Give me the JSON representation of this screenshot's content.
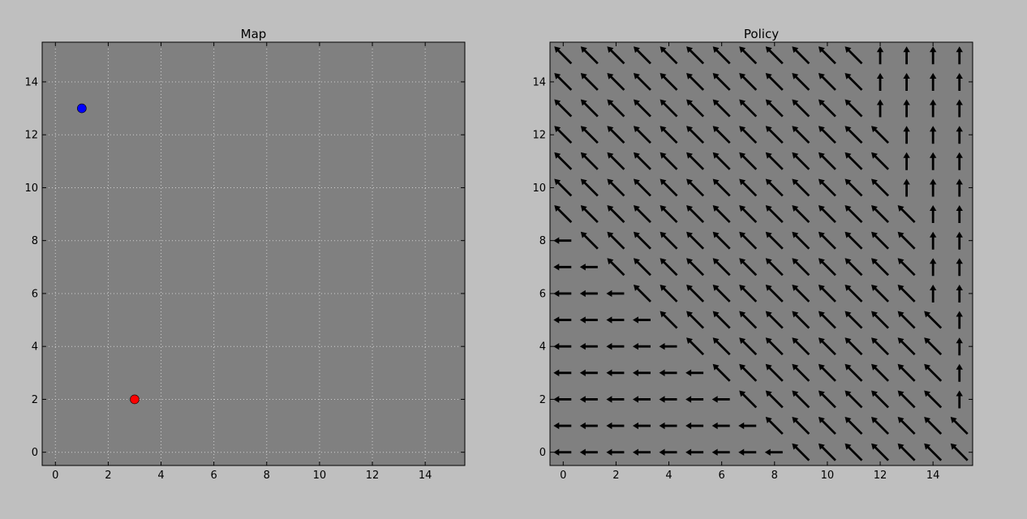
{
  "figure": {
    "background": "#bfbfbf",
    "axes_background": "#808080"
  },
  "chart_data": [
    {
      "type": "scatter",
      "title": "Map",
      "xlabel": "",
      "ylabel": "",
      "xlim": [
        -0.5,
        15.5
      ],
      "ylim": [
        -0.5,
        15.5
      ],
      "xticks": [
        0,
        2,
        4,
        6,
        8,
        10,
        12,
        14
      ],
      "yticks": [
        0,
        2,
        4,
        6,
        8,
        10,
        12,
        14
      ],
      "xtick_labels": [
        "0",
        "2",
        "4",
        "6",
        "8",
        "10",
        "12",
        "14"
      ],
      "ytick_labels": [
        "0",
        "2",
        "4",
        "6",
        "8",
        "10",
        "12",
        "14"
      ],
      "grid": true,
      "points": [
        {
          "x": 1,
          "y": 13,
          "color": "#0000ff"
        },
        {
          "x": 3,
          "y": 2,
          "color": "#ff0000"
        }
      ]
    },
    {
      "type": "quiver",
      "title": "Policy",
      "xlabel": "",
      "ylabel": "",
      "xlim": [
        -0.5,
        15.5
      ],
      "ylim": [
        -0.5,
        15.5
      ],
      "xticks": [
        0,
        2,
        4,
        6,
        8,
        10,
        12,
        14
      ],
      "yticks": [
        0,
        2,
        4,
        6,
        8,
        10,
        12,
        14
      ],
      "xtick_labels": [
        "0",
        "2",
        "4",
        "6",
        "8",
        "10",
        "12",
        "14"
      ],
      "ytick_labels": [
        "0",
        "2",
        "4",
        "6",
        "8",
        "10",
        "12",
        "14"
      ],
      "grid": false,
      "direction_legend": {
        "L": "left",
        "U": "up",
        "D": "diagonal up-left"
      },
      "rows_top_to_bottom": [
        {
          "y": 15,
          "dirs": "DDDDDDDDDDDDUUUU"
        },
        {
          "y": 14,
          "dirs": "DDDDDDDDDDDDUUUU"
        },
        {
          "y": 13,
          "dirs": "DDDDDDDDDDDDUUUU"
        },
        {
          "y": 12,
          "dirs": "DDDDDDDDDDDDDUUU"
        },
        {
          "y": 11,
          "dirs": "DDDDDDDDDDDDDUUU"
        },
        {
          "y": 10,
          "dirs": "DDDDDDDDDDDDDUUU"
        },
        {
          "y": 9,
          "dirs": "DDDDDDDDDDDDDDUU"
        },
        {
          "y": 8,
          "dirs": "LDDDDDDDDDDDDDUU"
        },
        {
          "y": 7,
          "dirs": "LLDDDDDDDDDDDDUU"
        },
        {
          "y": 6,
          "dirs": "LLLDDDDDDDDDDDUU"
        },
        {
          "y": 5,
          "dirs": "LLLLDDDDDDDDDDDU"
        },
        {
          "y": 4,
          "dirs": "LLLLLDDDDDDDDDDU"
        },
        {
          "y": 3,
          "dirs": "LLLLLLDDDDDDDDDU"
        },
        {
          "y": 2,
          "dirs": "LLLLLLLDDDDDDDDU"
        },
        {
          "y": 1,
          "dirs": "LLLLLLLLDDDDDDDD"
        },
        {
          "y": 0,
          "dirs": "LLLLLLLLLDDDDDDD"
        }
      ]
    }
  ]
}
